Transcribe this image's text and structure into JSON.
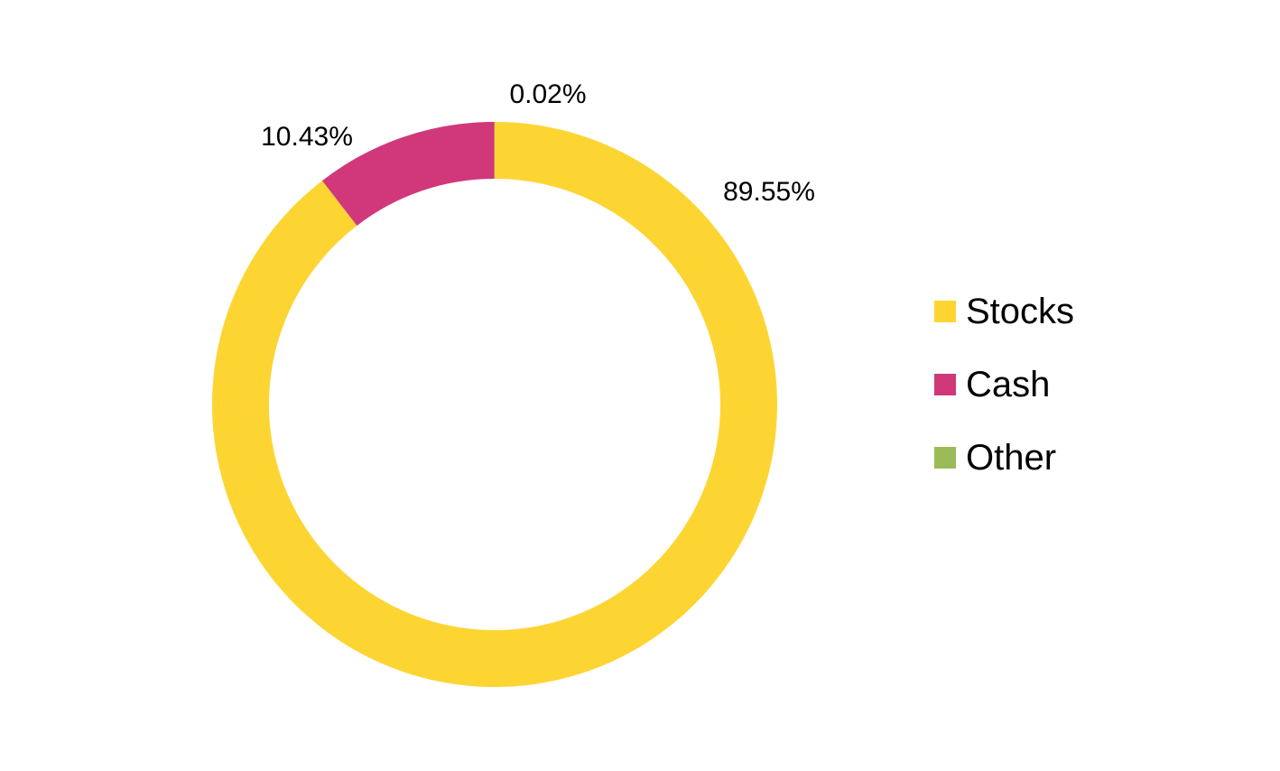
{
  "chart_data": {
    "type": "pie",
    "variant": "donut",
    "title": "",
    "series": [
      {
        "name": "",
        "slices": [
          {
            "label": "Stocks",
            "value": 89.55,
            "display": "89.55%",
            "color": "#FDD533"
          },
          {
            "label": "Cash",
            "value": 10.43,
            "display": "10.43%",
            "color": "#D0387A"
          },
          {
            "label": "Other",
            "value": 0.02,
            "display": "0.02%",
            "color": "#9BBB59"
          }
        ]
      }
    ],
    "legend": {
      "position": "right",
      "entries": [
        "Stocks",
        "Cash",
        "Other"
      ]
    },
    "start_angle": "12 o'clock",
    "direction": "clockwise"
  }
}
